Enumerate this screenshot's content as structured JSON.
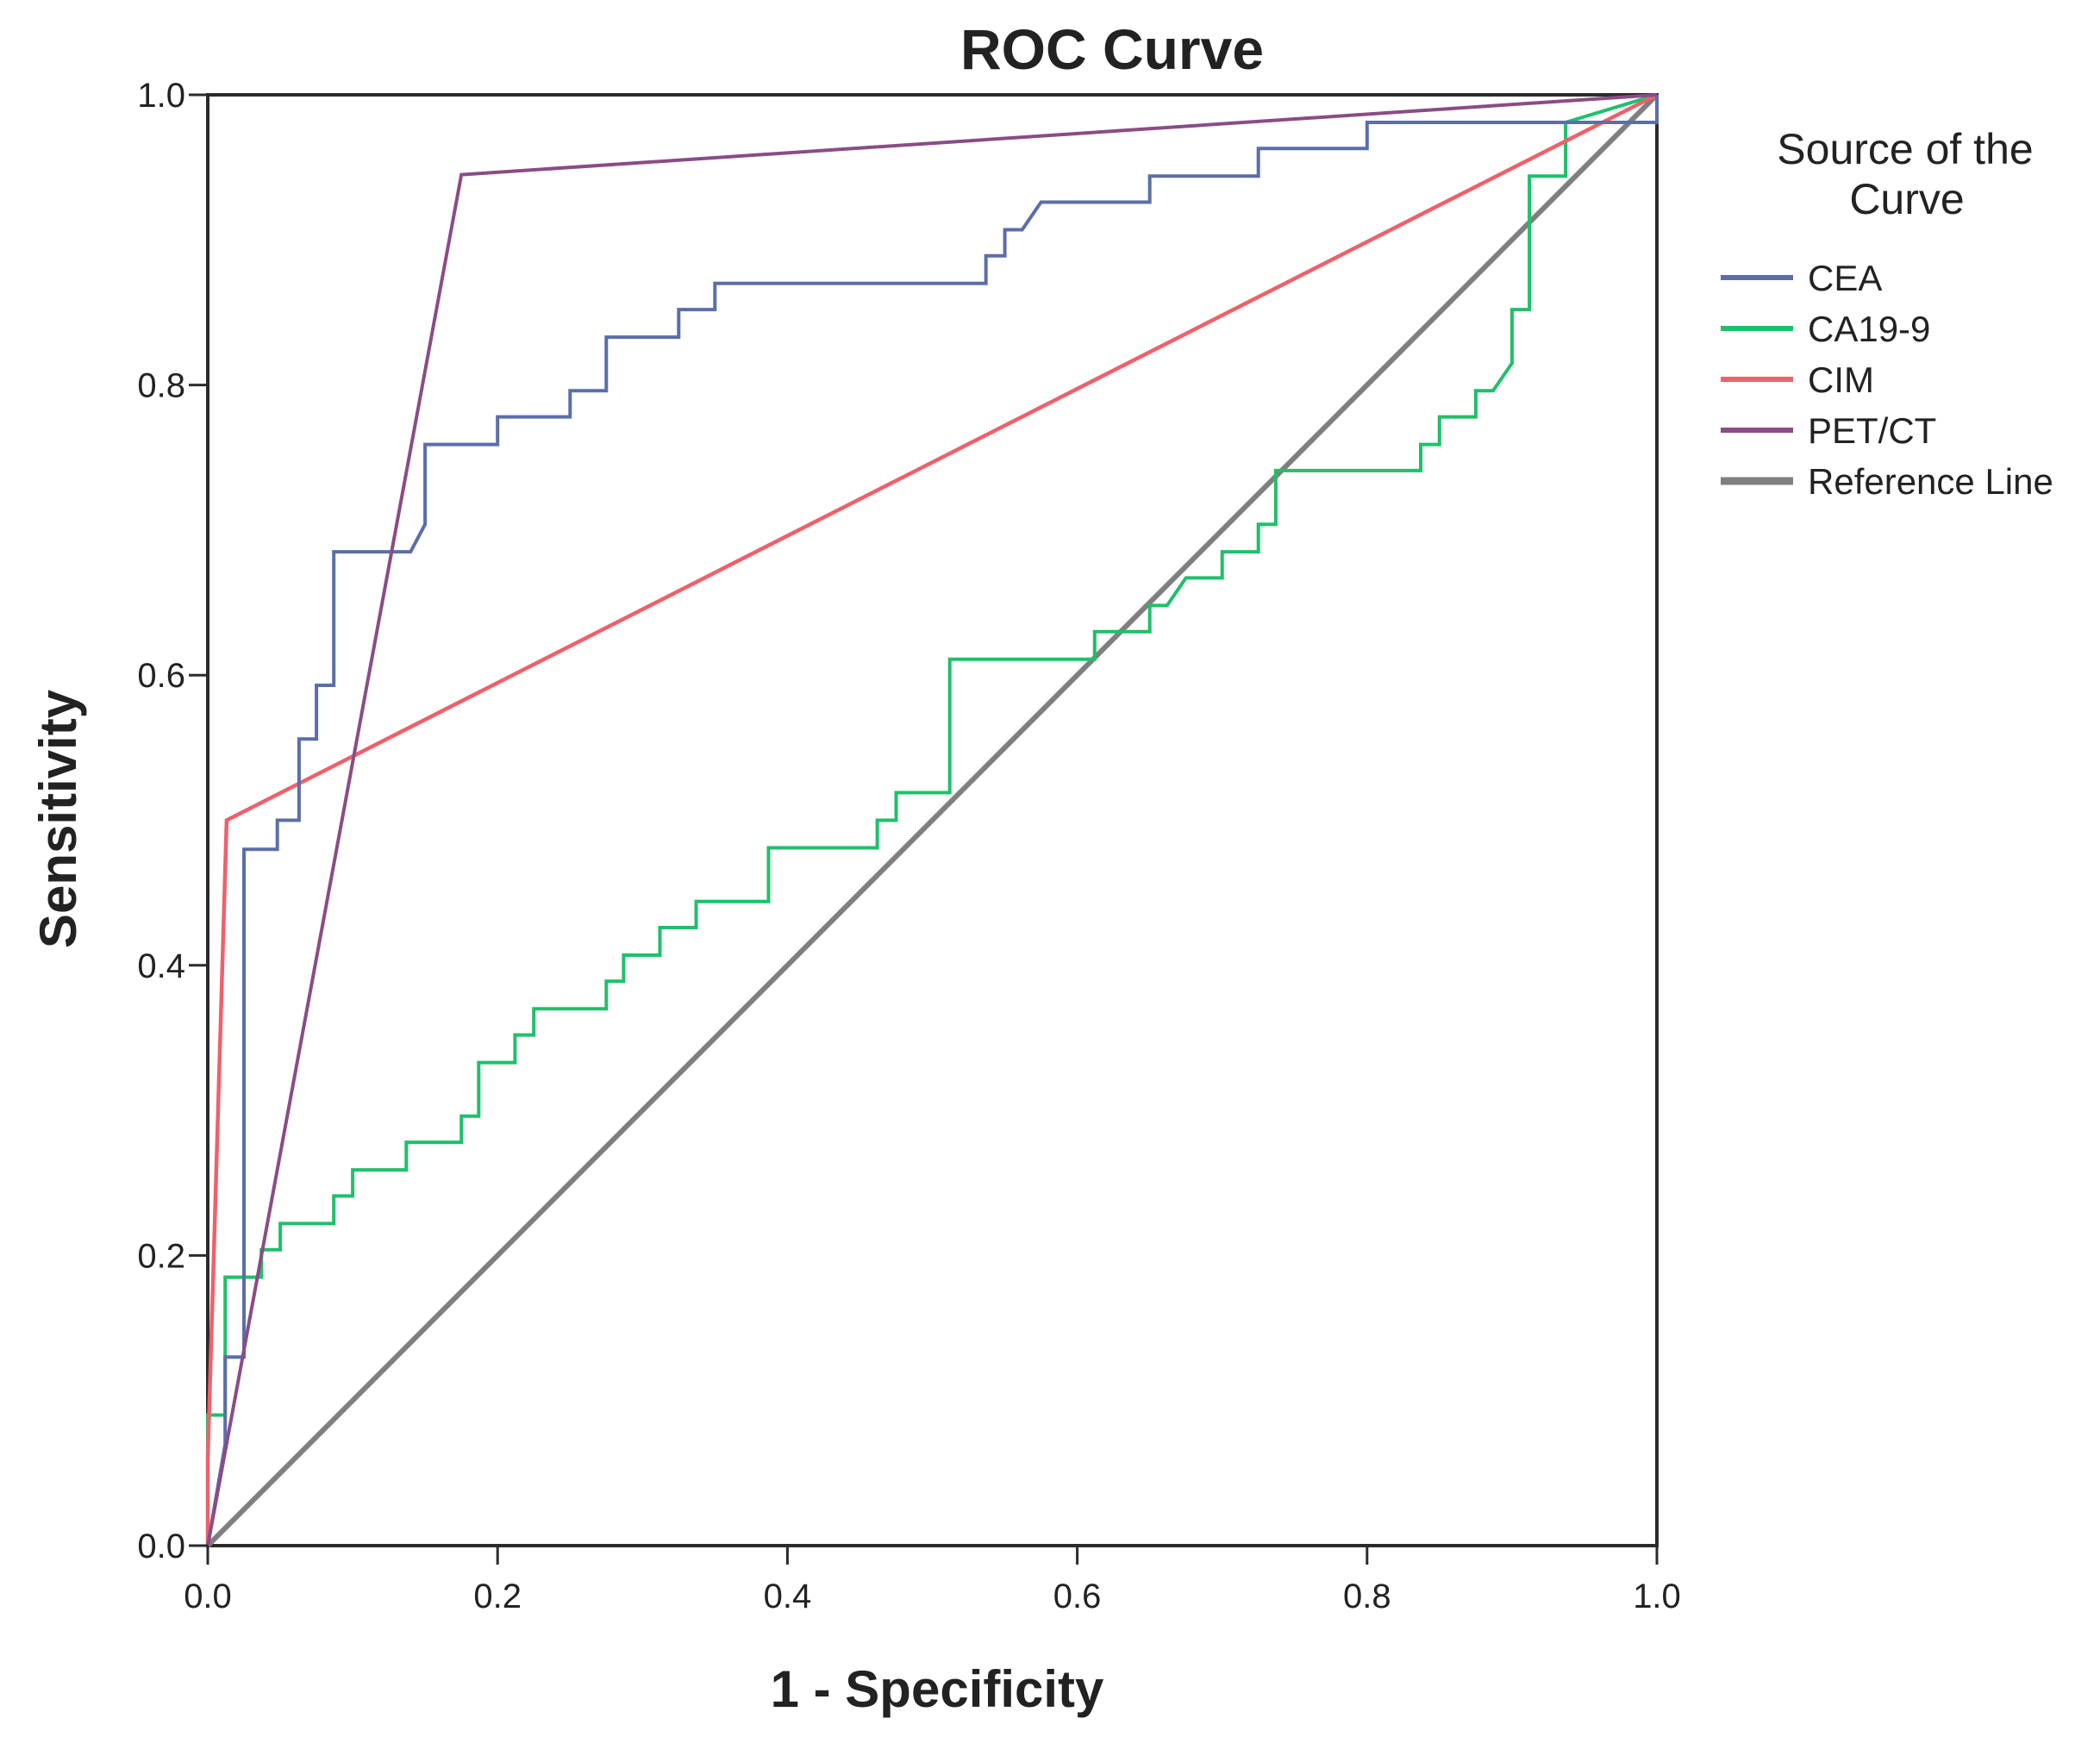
{
  "chart_data": {
    "type": "line",
    "title": "ROC Curve",
    "xlabel": "1 - Specificity",
    "ylabel": "Sensitivity",
    "xlim": [
      0,
      1
    ],
    "ylim": [
      0,
      1
    ],
    "x_ticks": [
      "0.0",
      "0.2",
      "0.4",
      "0.6",
      "0.8",
      "1.0"
    ],
    "y_ticks": [
      "0.0",
      "0.2",
      "0.4",
      "0.6",
      "0.8",
      "1.0"
    ],
    "grid": false,
    "legend": {
      "title": "Source of the Curve",
      "title_lines": [
        "Source of the",
        "Curve"
      ],
      "placement": "right"
    },
    "series": [
      {
        "name": "CEA",
        "color": "#5b6ea8",
        "points": [
          [
            0,
            0
          ],
          [
            0.012,
            0.07
          ],
          [
            0.012,
            0.13
          ],
          [
            0.025,
            0.13
          ],
          [
            0.025,
            0.48
          ],
          [
            0.048,
            0.48
          ],
          [
            0.048,
            0.5
          ],
          [
            0.063,
            0.5
          ],
          [
            0.063,
            0.556
          ],
          [
            0.075,
            0.556
          ],
          [
            0.075,
            0.593
          ],
          [
            0.087,
            0.593
          ],
          [
            0.087,
            0.685
          ],
          [
            0.14,
            0.685
          ],
          [
            0.15,
            0.704
          ],
          [
            0.15,
            0.759
          ],
          [
            0.2,
            0.759
          ],
          [
            0.2,
            0.778
          ],
          [
            0.25,
            0.778
          ],
          [
            0.25,
            0.796
          ],
          [
            0.275,
            0.796
          ],
          [
            0.275,
            0.833
          ],
          [
            0.325,
            0.833
          ],
          [
            0.325,
            0.852
          ],
          [
            0.35,
            0.852
          ],
          [
            0.35,
            0.87
          ],
          [
            0.537,
            0.87
          ],
          [
            0.537,
            0.889
          ],
          [
            0.55,
            0.889
          ],
          [
            0.55,
            0.907
          ],
          [
            0.562,
            0.907
          ],
          [
            0.575,
            0.926
          ],
          [
            0.65,
            0.926
          ],
          [
            0.65,
            0.944
          ],
          [
            0.725,
            0.944
          ],
          [
            0.725,
            0.963
          ],
          [
            0.8,
            0.963
          ],
          [
            0.8,
            0.981
          ],
          [
            1,
            0.981
          ],
          [
            1,
            1
          ]
        ]
      },
      {
        "name": "CA19-9",
        "color": "#1fc06a",
        "points": [
          [
            0,
            0
          ],
          [
            0,
            0.09
          ],
          [
            0.012,
            0.09
          ],
          [
            0.012,
            0.185
          ],
          [
            0.037,
            0.185
          ],
          [
            0.037,
            0.204
          ],
          [
            0.05,
            0.204
          ],
          [
            0.05,
            0.222
          ],
          [
            0.087,
            0.222
          ],
          [
            0.087,
            0.241
          ],
          [
            0.1,
            0.241
          ],
          [
            0.1,
            0.259
          ],
          [
            0.137,
            0.259
          ],
          [
            0.137,
            0.278
          ],
          [
            0.175,
            0.278
          ],
          [
            0.175,
            0.296
          ],
          [
            0.187,
            0.296
          ],
          [
            0.187,
            0.333
          ],
          [
            0.212,
            0.333
          ],
          [
            0.212,
            0.352
          ],
          [
            0.225,
            0.352
          ],
          [
            0.225,
            0.37
          ],
          [
            0.275,
            0.37
          ],
          [
            0.275,
            0.389
          ],
          [
            0.287,
            0.389
          ],
          [
            0.287,
            0.407
          ],
          [
            0.312,
            0.407
          ],
          [
            0.312,
            0.426
          ],
          [
            0.337,
            0.426
          ],
          [
            0.337,
            0.444
          ],
          [
            0.387,
            0.444
          ],
          [
            0.387,
            0.481
          ],
          [
            0.462,
            0.481
          ],
          [
            0.462,
            0.5
          ],
          [
            0.475,
            0.5
          ],
          [
            0.475,
            0.519
          ],
          [
            0.512,
            0.519
          ],
          [
            0.512,
            0.611
          ],
          [
            0.612,
            0.611
          ],
          [
            0.612,
            0.63
          ],
          [
            0.65,
            0.63
          ],
          [
            0.65,
            0.648
          ],
          [
            0.662,
            0.648
          ],
          [
            0.675,
            0.667
          ],
          [
            0.7,
            0.667
          ],
          [
            0.7,
            0.685
          ],
          [
            0.725,
            0.685
          ],
          [
            0.725,
            0.704
          ],
          [
            0.737,
            0.704
          ],
          [
            0.737,
            0.741
          ],
          [
            0.837,
            0.741
          ],
          [
            0.837,
            0.759
          ],
          [
            0.85,
            0.759
          ],
          [
            0.85,
            0.778
          ],
          [
            0.875,
            0.778
          ],
          [
            0.875,
            0.796
          ],
          [
            0.887,
            0.796
          ],
          [
            0.9,
            0.815
          ],
          [
            0.9,
            0.852
          ],
          [
            0.912,
            0.852
          ],
          [
            0.912,
            0.944
          ],
          [
            0.937,
            0.944
          ],
          [
            0.937,
            0.981
          ],
          [
            1,
            1
          ]
        ]
      },
      {
        "name": "CIM",
        "color": "#f0606a",
        "points": [
          [
            0,
            0
          ],
          [
            0,
            0.06
          ],
          [
            0.013,
            0.5
          ],
          [
            1,
            1
          ]
        ]
      },
      {
        "name": "PET/CT",
        "color": "#8a4c86",
        "points": [
          [
            0,
            0
          ],
          [
            0.175,
            0.945
          ],
          [
            1,
            1
          ]
        ]
      },
      {
        "name": "Reference Line",
        "color": "#7f7f7f",
        "points": [
          [
            0,
            0
          ],
          [
            1,
            1
          ]
        ]
      }
    ]
  }
}
